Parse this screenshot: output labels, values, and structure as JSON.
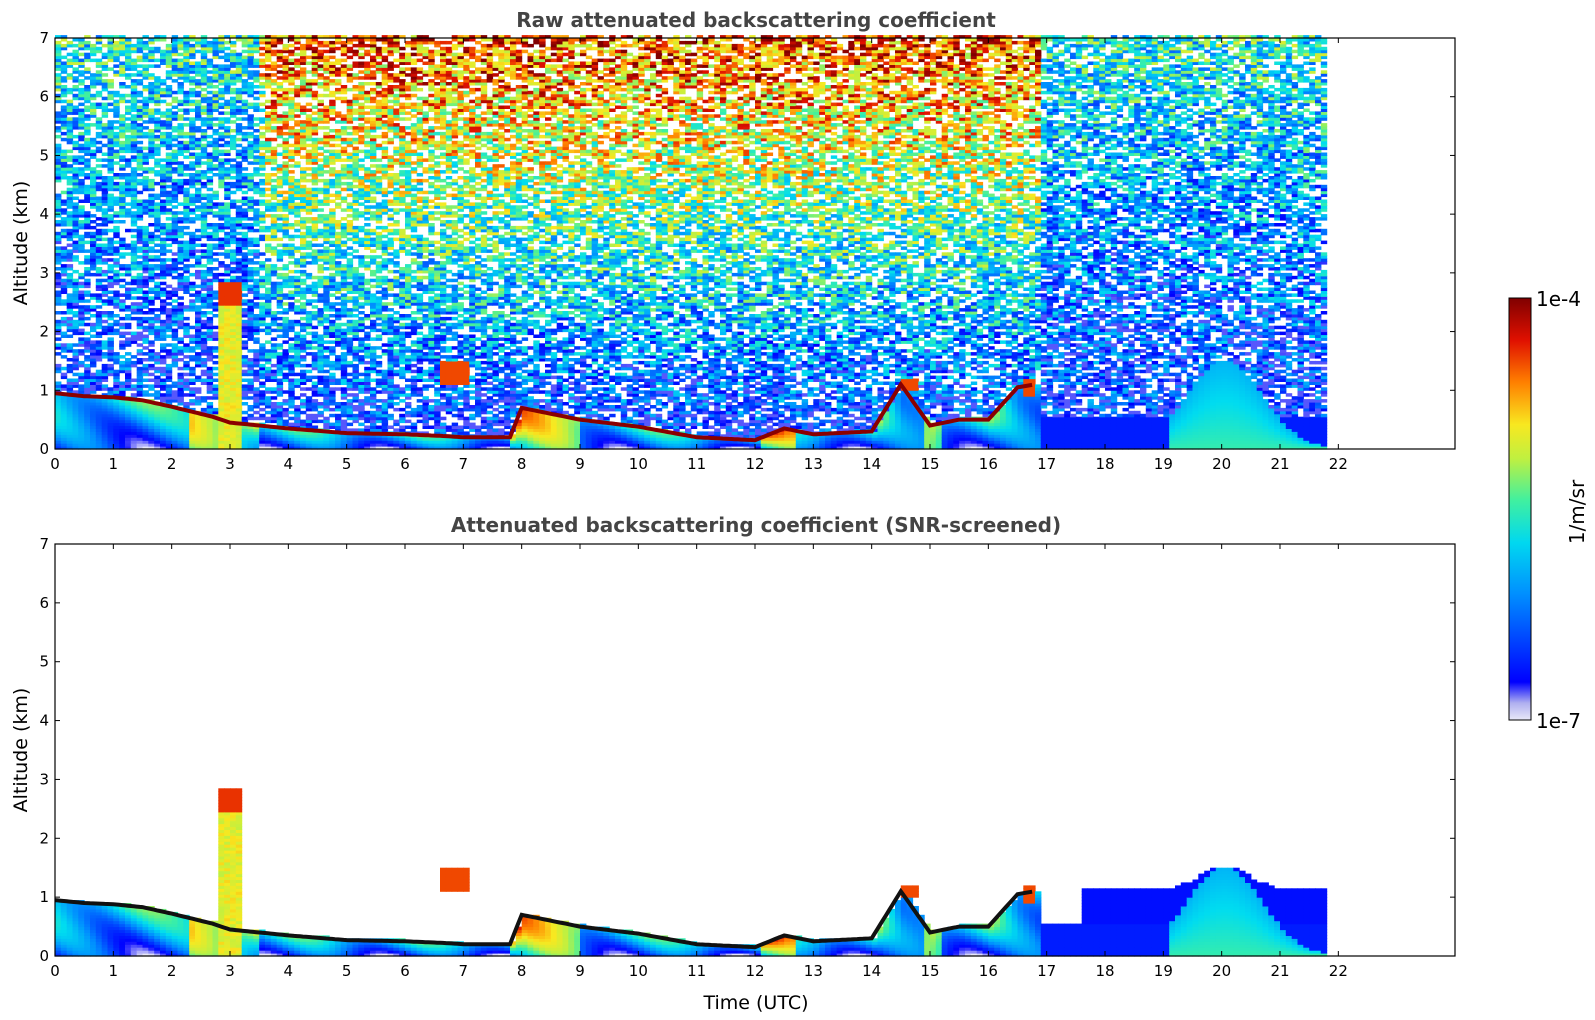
{
  "chart_data": [
    {
      "type": "heatmap",
      "title": "Raw attenuated backscattering coefficient",
      "xlabel": "",
      "ylabel": "Altitude (km)",
      "xlim": [
        0,
        24
      ],
      "ylim": [
        0,
        7
      ],
      "x_ticks": [
        "0",
        "1",
        "2",
        "3",
        "4",
        "5",
        "6",
        "7",
        "8",
        "9",
        "10",
        "11",
        "12",
        "13",
        "14",
        "15",
        "16",
        "17",
        "18",
        "19",
        "20",
        "21",
        "22"
      ],
      "y_ticks": [
        "0",
        "1",
        "2",
        "3",
        "4",
        "5",
        "6",
        "7"
      ],
      "data_end_time": 21.8,
      "boundary_layer_top_km": [
        [
          0,
          0.95
        ],
        [
          0.5,
          0.9
        ],
        [
          1,
          0.88
        ],
        [
          1.5,
          0.83
        ],
        [
          2,
          0.72
        ],
        [
          2.7,
          0.55
        ],
        [
          3,
          0.45
        ],
        [
          4,
          0.35
        ],
        [
          5,
          0.27
        ],
        [
          6,
          0.25
        ],
        [
          6.7,
          0.22
        ],
        [
          7,
          0.2
        ],
        [
          7.8,
          0.2
        ],
        [
          8,
          0.7
        ],
        [
          8.5,
          0.6
        ],
        [
          9,
          0.5
        ],
        [
          10,
          0.38
        ],
        [
          11,
          0.2
        ],
        [
          12,
          0.15
        ],
        [
          12.5,
          0.35
        ],
        [
          13,
          0.25
        ],
        [
          14,
          0.3
        ],
        [
          14.5,
          1.1
        ],
        [
          15,
          0.4
        ],
        [
          15.5,
          0.5
        ],
        [
          16,
          0.5
        ],
        [
          16.5,
          1.05
        ],
        [
          16.8,
          1.1
        ]
      ],
      "features": [
        {
          "name": "elevated aerosol plume",
          "time": [
            2.75,
            3.15
          ],
          "altitude_km": [
            0.4,
            2.8
          ]
        },
        {
          "name": "elevated layer",
          "time": [
            6.6,
            7.1
          ],
          "altitude_km": [
            1.1,
            1.5
          ]
        },
        {
          "name": "elevated layer",
          "time": [
            14.4,
            14.75
          ],
          "altitude_km": [
            1.0,
            1.2
          ]
        },
        {
          "name": "elevated layer",
          "time": [
            16.5,
            16.8
          ],
          "altitude_km": [
            0.9,
            1.2
          ]
        },
        {
          "name": "evening residual aerosol",
          "time": [
            19.0,
            21.0
          ],
          "altitude_km": [
            0,
            1.5
          ]
        }
      ]
    },
    {
      "type": "heatmap",
      "title": "Attenuated backscattering coefficient (SNR-screened)",
      "xlabel": "Time (UTC)",
      "ylabel": "Altitude (km)",
      "xlim": [
        0,
        24
      ],
      "ylim": [
        0,
        7
      ],
      "x_ticks": [
        "0",
        "1",
        "2",
        "3",
        "4",
        "5",
        "6",
        "7",
        "8",
        "9",
        "10",
        "11",
        "12",
        "13",
        "14",
        "15",
        "16",
        "17",
        "18",
        "19",
        "20",
        "21",
        "22"
      ],
      "y_ticks": [
        "0",
        "1",
        "2",
        "3",
        "4",
        "5",
        "6",
        "7"
      ],
      "data_end_time": 21.8
    }
  ],
  "colorbar": {
    "label": "1/m/sr",
    "max_label": "1e-4",
    "min_label": "1e-7",
    "scale": "log",
    "colormap": [
      "#e8e8f8",
      "#0000ff",
      "#00c8ff",
      "#50f0a0",
      "#f0f020",
      "#ff7800",
      "#e00000",
      "#800000"
    ]
  }
}
